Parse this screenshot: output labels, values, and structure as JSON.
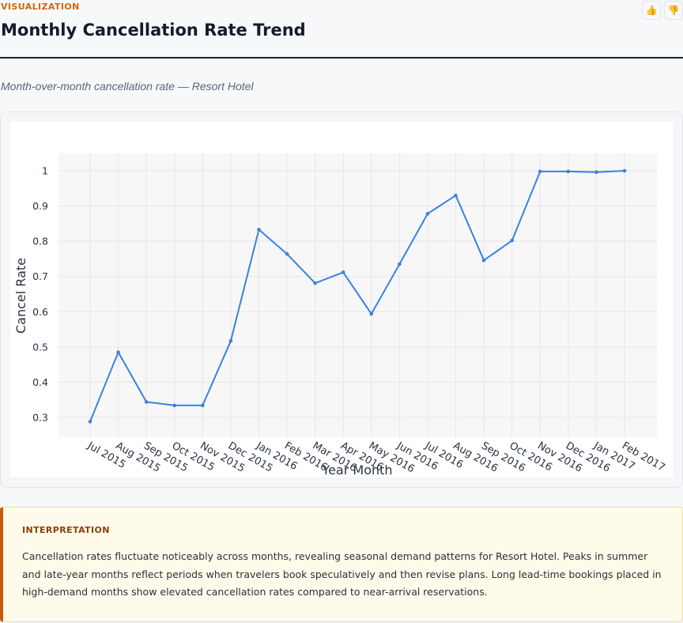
{
  "header": {
    "eyebrow": "VISUALIZATION",
    "title": "Monthly Cancellation Rate Trend",
    "subtitle": "Month-over-month cancellation rate — Resort Hotel",
    "thumbs_up_icon": "thumbs-up-icon",
    "thumbs_down_icon": "thumbs-down-icon"
  },
  "colors": {
    "accent": "#d4660f",
    "line": "#3b82dc",
    "interpretation_border": "#c9590e",
    "interpretation_bg": "#fffbea"
  },
  "chart_data": {
    "type": "line",
    "xlabel": "Year Month",
    "ylabel": "Cancel Rate",
    "categories": [
      "Jul 2015",
      "Aug 2015",
      "Sep 2015",
      "Oct 2015",
      "Nov 2015",
      "Dec 2015",
      "Jan 2016",
      "Feb 2016",
      "Mar 2016",
      "Apr 2016",
      "May 2016",
      "Jun 2016",
      "Jul 2016",
      "Aug 2016",
      "Sep 2016",
      "Oct 2016",
      "Nov 2016",
      "Dec 2016",
      "Jan 2017",
      "Feb 2017"
    ],
    "values": [
      0.288,
      0.485,
      0.344,
      0.334,
      0.334,
      0.517,
      0.833,
      0.764,
      0.681,
      0.712,
      0.594,
      0.735,
      0.878,
      0.93,
      0.746,
      0.802,
      0.998,
      0.998,
      0.996,
      1.0
    ],
    "yticks": [
      "0.3",
      "0.4",
      "0.5",
      "0.6",
      "0.7",
      "0.8",
      "0.9",
      "1"
    ],
    "ylim": [
      0.24,
      1.05
    ],
    "grid": true
  },
  "interpretation": {
    "label": "INTERPRETATION",
    "text": "Cancellation rates fluctuate noticeably across months, revealing seasonal demand patterns for Resort Hotel. Peaks in summer and late-year months reflect periods when travelers book speculatively and then revise plans. Long lead-time bookings placed in high-demand months show elevated cancellation rates compared to near-arrival reservations."
  }
}
